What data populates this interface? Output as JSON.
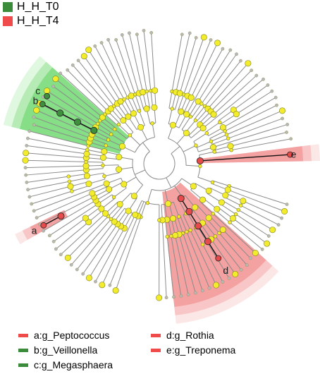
{
  "groups": [
    {
      "name": "H_H_T0",
      "color": "#3a8c3a"
    },
    {
      "name": "H_H_T4",
      "color": "#ef4b4b"
    }
  ],
  "clade_labels": [
    {
      "letter": "a",
      "text": "a:g_Peptococcus",
      "group": 1
    },
    {
      "letter": "b",
      "text": "b:g_Veillonella",
      "group": 0
    },
    {
      "letter": "c",
      "text": "c:g_Megasphaera",
      "group": 0
    },
    {
      "letter": "d",
      "text": "d:g_Rothia",
      "group": 1
    },
    {
      "letter": "e",
      "text": "e:g_Treponema",
      "group": 1
    }
  ],
  "colors": {
    "node_default": "#f2ec2c",
    "node_stroke": "#7f7f20",
    "edge": "#8a8a8a",
    "green_fill": "#55d155",
    "red_fill": "#f07b7b",
    "green_node": "#3f8f3f",
    "red_node": "#e64a4a"
  }
}
